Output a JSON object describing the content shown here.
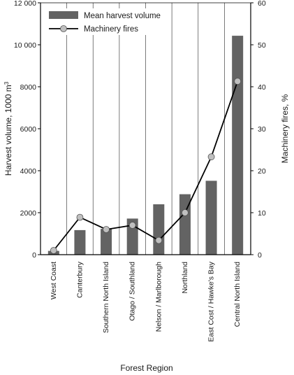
{
  "chart_data": {
    "type": "bar",
    "xlabel": "Forest Region",
    "ylabel": "Harvest volume, 1000 m",
    "ylabel_superscript": "3",
    "y2label": "Machinery fires, %",
    "ylim": [
      0,
      12000
    ],
    "y2lim": [
      0,
      60
    ],
    "yticks": [
      "0",
      "2000",
      "4000",
      "6000",
      "8000",
      "10 000",
      "12 000"
    ],
    "y2ticks": [
      "0",
      "10",
      "20",
      "30",
      "40",
      "50",
      "60"
    ],
    "categories": [
      "West Coast",
      "Canterbury",
      "Southern North Island",
      "Otago / Southland",
      "Nelson / Marlborough",
      "Northland",
      "East Cost / Hawke's Bay",
      "Central North Island"
    ],
    "series": [
      {
        "name": "Mean harvest volume",
        "type": "bar",
        "axis": "left",
        "color": "#636363",
        "values": [
          180,
          1170,
          1230,
          1720,
          2400,
          2880,
          3520,
          10430
        ]
      },
      {
        "name": "Machinery fires",
        "type": "line",
        "axis": "right",
        "color": "#000000",
        "marker_color": "#bfbfbf",
        "values": [
          1.0,
          8.9,
          6.0,
          7.0,
          3.4,
          10.0,
          23.3,
          41.3
        ]
      }
    ],
    "grid": "vertical",
    "legend": "top-left"
  }
}
